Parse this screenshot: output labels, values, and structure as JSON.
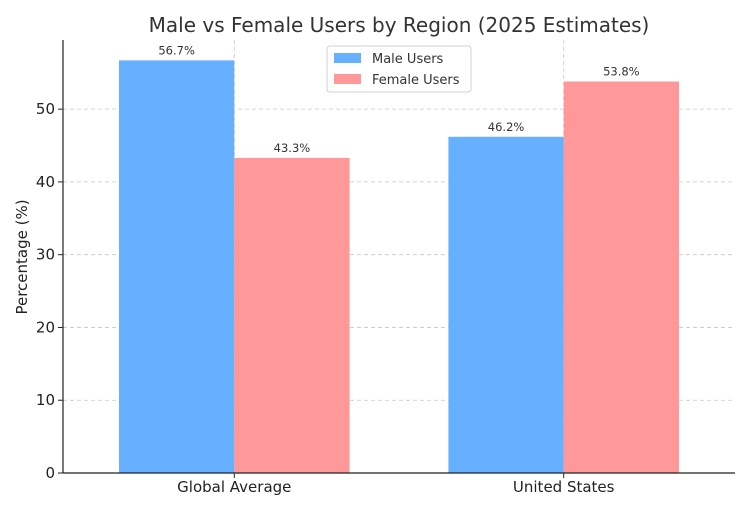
{
  "chart_data": {
    "type": "bar",
    "title": "Male vs Female Users by Region (2025 Estimates)",
    "xlabel": "",
    "ylabel": "Percentage (%)",
    "categories": [
      "Global Average",
      "United States"
    ],
    "series": [
      {
        "name": "Male Users",
        "values": [
          56.7,
          46.2
        ],
        "labels": [
          "56.7%",
          "46.2%"
        ],
        "color": "#66b0ff"
      },
      {
        "name": "Female Users",
        "values": [
          43.3,
          53.8
        ],
        "labels": [
          "43.3%",
          "53.8%"
        ],
        "color": "#ff9999"
      }
    ],
    "ylim": [
      0,
      59.5
    ],
    "yticks": [
      0,
      10,
      20,
      30,
      40,
      50
    ],
    "grid": true,
    "legend_position": "top-center"
  }
}
